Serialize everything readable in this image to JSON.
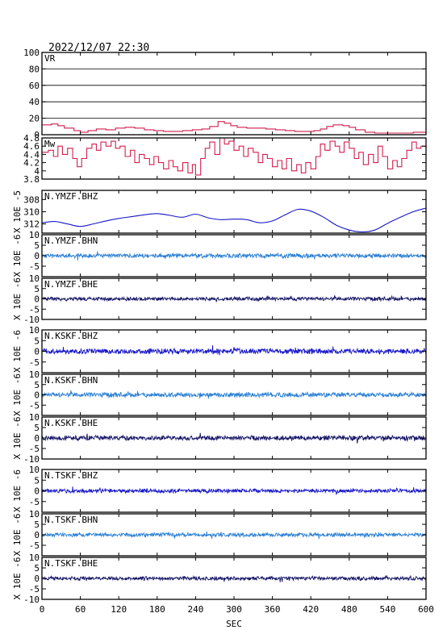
{
  "chart_data": {
    "type": "line",
    "timestamp": "2022/12/07 22:30",
    "xlabel": "SEC",
    "xlim": [
      0,
      600
    ],
    "xticks": [
      0,
      60,
      120,
      180,
      240,
      300,
      360,
      420,
      480,
      540,
      600
    ],
    "panels": [
      {
        "label": "VR",
        "ylim": [
          0,
          100
        ],
        "yticks": [
          0,
          20,
          40,
          60,
          80,
          100
        ],
        "grid": true,
        "color": "#d21f4e",
        "ylabel": "",
        "trace": {
          "kind": "points",
          "x": [
            0,
            15,
            25,
            35,
            50,
            60,
            72,
            85,
            100,
            115,
            130,
            145,
            160,
            175,
            190,
            205,
            220,
            235,
            250,
            262,
            275,
            285,
            295,
            305,
            320,
            335,
            350,
            365,
            380,
            395,
            410,
            425,
            435,
            445,
            455,
            470,
            480,
            490,
            505,
            520,
            540,
            560,
            580,
            600
          ],
          "y": [
            12,
            13,
            11,
            8,
            5,
            3,
            5,
            7,
            6,
            8,
            9,
            8,
            6,
            5,
            4,
            4,
            5,
            6,
            7,
            10,
            16,
            14,
            11,
            9,
            8,
            8,
            7,
            6,
            5,
            4,
            4,
            5,
            7,
            10,
            12,
            11,
            9,
            6,
            3,
            2,
            2,
            2,
            3,
            4
          ]
        }
      },
      {
        "label": "Mw",
        "ylim": [
          3.8,
          4.8
        ],
        "yticks": [
          3.8,
          4.0,
          4.2,
          4.4,
          4.6,
          4.8
        ],
        "grid": false,
        "color": "#d21f4e",
        "ylabel": "",
        "trace": {
          "kind": "points",
          "x": [
            0,
            10,
            18,
            25,
            32,
            40,
            48,
            55,
            62,
            70,
            78,
            85,
            92,
            100,
            108,
            115,
            122,
            130,
            138,
            145,
            152,
            160,
            168,
            175,
            182,
            190,
            198,
            205,
            212,
            220,
            228,
            235,
            240,
            248,
            255,
            262,
            270,
            278,
            285,
            292,
            300,
            308,
            315,
            322,
            330,
            338,
            345,
            352,
            360,
            368,
            375,
            382,
            390,
            398,
            405,
            412,
            420,
            428,
            435,
            442,
            450,
            458,
            465,
            472,
            480,
            488,
            495,
            502,
            510,
            518,
            525,
            532,
            540,
            548,
            555,
            562,
            570,
            578,
            585,
            592,
            600
          ],
          "y": [
            4.45,
            4.5,
            4.35,
            4.6,
            4.4,
            4.55,
            4.3,
            4.1,
            4.3,
            4.55,
            4.65,
            4.5,
            4.7,
            4.6,
            4.72,
            4.55,
            4.6,
            4.35,
            4.5,
            4.2,
            4.4,
            4.3,
            4.15,
            4.35,
            4.2,
            4.05,
            4.25,
            4.1,
            4.0,
            4.2,
            3.95,
            4.15,
            3.9,
            4.3,
            4.55,
            4.7,
            4.4,
            4.8,
            4.65,
            4.72,
            4.5,
            4.6,
            4.35,
            4.55,
            4.45,
            4.2,
            4.4,
            4.3,
            4.1,
            4.25,
            4.05,
            4.3,
            4.0,
            4.15,
            3.95,
            4.2,
            4.05,
            4.35,
            4.65,
            4.5,
            4.72,
            4.6,
            4.45,
            4.7,
            4.55,
            4.3,
            4.45,
            4.15,
            4.4,
            4.2,
            4.6,
            4.35,
            4.05,
            4.25,
            4.1,
            4.3,
            4.5,
            4.7,
            4.55,
            4.6,
            4.5
          ]
        }
      },
      {
        "label": "N.YMZF.BHZ",
        "ylim": [
          -313.5,
          -306.5
        ],
        "yticks": [
          -312,
          -310,
          -308
        ],
        "tick_labels": [
          "312",
          "310",
          "308"
        ],
        "grid": false,
        "color": "#1717c8",
        "ylabel": "X 10E -5",
        "trace": {
          "kind": "points",
          "x": [
            0,
            20,
            40,
            60,
            80,
            100,
            120,
            140,
            160,
            180,
            200,
            220,
            240,
            260,
            280,
            300,
            320,
            340,
            360,
            380,
            400,
            420,
            440,
            460,
            480,
            500,
            520,
            540,
            560,
            580,
            600
          ],
          "y": [
            -311.8,
            -311.6,
            -312.0,
            -312.4,
            -312.0,
            -311.5,
            -311.1,
            -310.8,
            -310.5,
            -310.3,
            -310.6,
            -310.9,
            -310.4,
            -311.0,
            -311.3,
            -311.2,
            -311.3,
            -311.8,
            -311.5,
            -310.5,
            -309.6,
            -309.9,
            -310.9,
            -312.2,
            -313.0,
            -313.3,
            -313.0,
            -311.9,
            -310.9,
            -310.0,
            -309.4
          ]
        }
      },
      {
        "label": "N.YMZF.BHN",
        "ylim": [
          -10,
          10
        ],
        "yticks": [
          -5,
          0,
          5,
          10
        ],
        "grid": false,
        "color": "#2a7fd4",
        "ylabel": "X 10E -6",
        "trace": {
          "kind": "noise",
          "amplitude": 0.9,
          "seed": 11
        }
      },
      {
        "label": "N.YMZF.BHE",
        "ylim": [
          -10,
          10
        ],
        "yticks": [
          -10,
          -5,
          0,
          5,
          10
        ],
        "grid": false,
        "color": "#141466",
        "ylabel": "X 10E -6",
        "trace": {
          "kind": "noise",
          "amplitude": 0.8,
          "seed": 23
        }
      },
      {
        "label": "N.KSKF.BHZ",
        "ylim": [
          -10,
          10
        ],
        "yticks": [
          -5,
          0,
          5,
          10
        ],
        "grid": false,
        "color": "#1717c8",
        "ylabel": "X 10E -6",
        "trace": {
          "kind": "noise",
          "amplitude": 1.1,
          "seed": 37
        }
      },
      {
        "label": "N.KSKF.BHN",
        "ylim": [
          -10,
          10
        ],
        "yticks": [
          -5,
          0,
          5,
          10
        ],
        "grid": false,
        "color": "#2a7fd4",
        "ylabel": "X 10E -6",
        "trace": {
          "kind": "noise",
          "amplitude": 1.0,
          "seed": 41
        }
      },
      {
        "label": "N.KSKF.BHE",
        "ylim": [
          -10,
          10
        ],
        "yticks": [
          -10,
          -5,
          0,
          5,
          10
        ],
        "grid": false,
        "color": "#141466",
        "ylabel": "X 10E -6",
        "trace": {
          "kind": "noise",
          "amplitude": 1.0,
          "seed": 53
        }
      },
      {
        "label": "N.TSKF.BHZ",
        "ylim": [
          -10,
          10
        ],
        "yticks": [
          -5,
          0,
          5,
          10
        ],
        "grid": false,
        "color": "#1717c8",
        "ylabel": "X 10E -6",
        "trace": {
          "kind": "noise",
          "amplitude": 0.8,
          "seed": 67
        }
      },
      {
        "label": "N.TSKF.BHN",
        "ylim": [
          -10,
          10
        ],
        "yticks": [
          -5,
          0,
          5,
          10
        ],
        "grid": false,
        "color": "#2a7fd4",
        "ylabel": "X 10E -6",
        "trace": {
          "kind": "noise",
          "amplitude": 0.8,
          "seed": 71
        }
      },
      {
        "label": "N.TSKF.BHE",
        "ylim": [
          -10,
          10
        ],
        "yticks": [
          -10,
          -5,
          0,
          5,
          10
        ],
        "grid": false,
        "color": "#141466",
        "ylabel": "X 10E -6",
        "trace": {
          "kind": "noise",
          "amplitude": 0.8,
          "seed": 83
        }
      }
    ]
  }
}
